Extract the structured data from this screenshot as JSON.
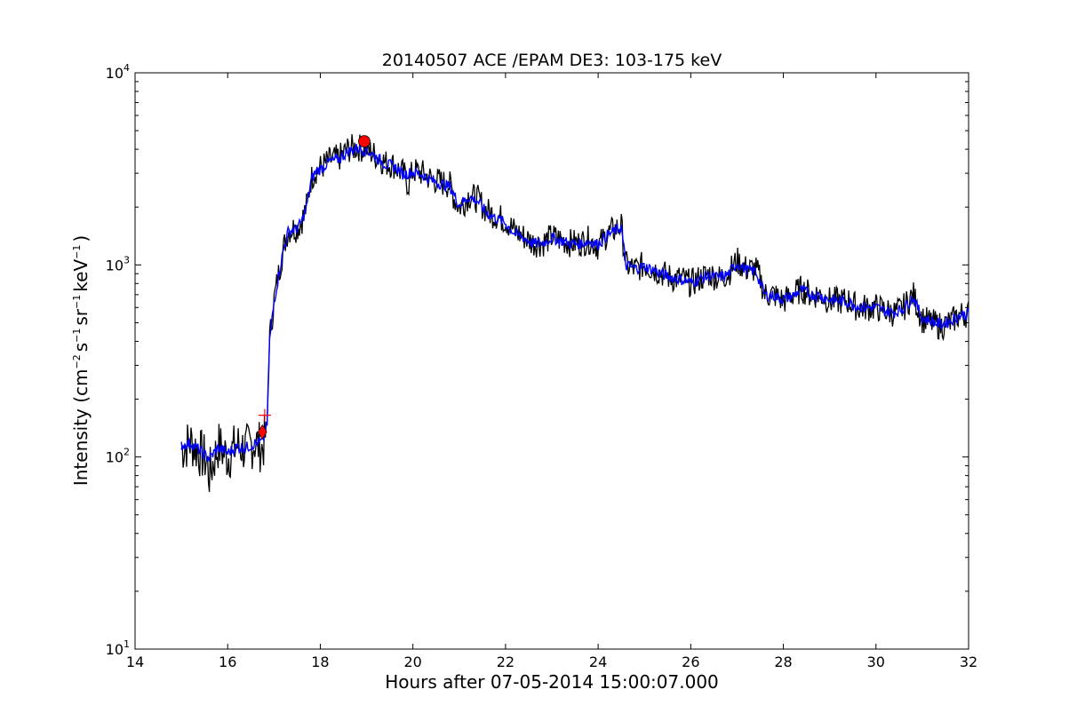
{
  "chart_data": {
    "type": "line",
    "title": "20140507 ACE /EPAM DE3: 103-175 keV",
    "xlabel": "Hours after 07-05-2014 15:00:07.000",
    "ylabel": {
      "prefix": "Intensity (cm",
      "sup1": "−2",
      "mid1": "s",
      "sup2": "−1",
      "mid2": "sr",
      "sup3": "−1",
      "mid3": "keV",
      "sup4": "−1",
      "suffix": ")"
    },
    "xlim": [
      14,
      32
    ],
    "ylim": [
      10,
      10000
    ],
    "yscale": "log",
    "grid": false,
    "x_ticks": [
      "14",
      "16",
      "18",
      "20",
      "22",
      "24",
      "26",
      "28",
      "30",
      "32"
    ],
    "y_ticks": [
      {
        "base": "10",
        "exp": "1"
      },
      {
        "base": "10",
        "exp": "2"
      },
      {
        "base": "10",
        "exp": "3"
      },
      {
        "base": "10",
        "exp": "4"
      }
    ],
    "series": [
      {
        "color": "#000000",
        "kind": "raw",
        "x": [
          15.0,
          15.2,
          15.4,
          15.55,
          15.6,
          15.8,
          16.0,
          16.2,
          16.4,
          16.6,
          16.75,
          16.85,
          16.9,
          17.0,
          17.1,
          17.2,
          17.3,
          17.4,
          17.5,
          17.6,
          17.7,
          17.8,
          17.9,
          18.0,
          18.2,
          18.4,
          18.6,
          18.8,
          19.0,
          19.2,
          19.4,
          19.6,
          19.7,
          19.8,
          19.9,
          20.0,
          20.2,
          20.4,
          20.6,
          20.8,
          20.9,
          21.0,
          21.1,
          21.2,
          21.4,
          21.6,
          21.8,
          22.0,
          22.2,
          22.4,
          22.6,
          22.8,
          23.0,
          23.2,
          23.4,
          23.6,
          23.8,
          24.0,
          24.2,
          24.4,
          24.5,
          24.6,
          24.8,
          25.0,
          25.2,
          25.4,
          25.6,
          25.8,
          26.0,
          26.2,
          26.4,
          26.6,
          26.8,
          27.0,
          27.2,
          27.4,
          27.5,
          27.6,
          27.8,
          28.0,
          28.2,
          28.4,
          28.6,
          28.8,
          29.0,
          29.2,
          29.4,
          29.6,
          29.8,
          30.0,
          30.2,
          30.4,
          30.6,
          30.8,
          31.0,
          31.2,
          31.4,
          31.6,
          31.8,
          32.0
        ],
        "y": [
          110,
          120,
          105,
          95,
          80,
          115,
          100,
          115,
          110,
          120,
          110,
          140,
          400,
          650,
          900,
          1200,
          1500,
          1550,
          1550,
          1700,
          2000,
          2800,
          3100,
          3200,
          3500,
          3600,
          4000,
          4100,
          4000,
          3700,
          3400,
          3300,
          3100,
          3000,
          2600,
          3100,
          3000,
          2800,
          2700,
          2600,
          2200,
          2000,
          2100,
          2300,
          2200,
          1900,
          1800,
          1700,
          1500,
          1400,
          1300,
          1300,
          1400,
          1350,
          1300,
          1300,
          1350,
          1250,
          1450,
          1550,
          1600,
          1000,
          950,
          1000,
          950,
          900,
          850,
          850,
          800,
          850,
          900,
          850,
          900,
          1050,
          950,
          950,
          850,
          700,
          700,
          650,
          700,
          750,
          700,
          700,
          650,
          650,
          650,
          600,
          600,
          600,
          580,
          560,
          600,
          700,
          520,
          500,
          480,
          500,
          550,
          560
        ]
      },
      {
        "color": "#0000ff",
        "kind": "smoothed",
        "x": [
          15.0,
          15.2,
          15.4,
          15.6,
          15.8,
          16.0,
          16.2,
          16.4,
          16.6,
          16.75,
          16.85,
          16.9,
          17.0,
          17.1,
          17.2,
          17.3,
          17.4,
          17.5,
          17.6,
          17.7,
          17.8,
          17.9,
          18.0,
          18.2,
          18.4,
          18.6,
          18.8,
          19.0,
          19.2,
          19.4,
          19.6,
          19.8,
          20.0,
          20.2,
          20.4,
          20.6,
          20.8,
          21.0,
          21.2,
          21.4,
          21.6,
          21.8,
          22.0,
          22.2,
          22.4,
          22.6,
          22.8,
          23.0,
          23.2,
          23.4,
          23.6,
          23.8,
          24.0,
          24.2,
          24.4,
          24.5,
          24.6,
          24.8,
          25.0,
          25.2,
          25.4,
          25.6,
          25.8,
          26.0,
          26.2,
          26.4,
          26.6,
          26.8,
          27.0,
          27.2,
          27.4,
          27.6,
          27.8,
          28.0,
          28.2,
          28.4,
          28.6,
          28.8,
          29.0,
          29.2,
          29.4,
          29.6,
          29.8,
          30.0,
          30.2,
          30.4,
          30.6,
          30.8,
          31.0,
          31.2,
          31.4,
          31.6,
          31.8,
          32.0
        ],
        "y": [
          115,
          118,
          108,
          98,
          112,
          105,
          113,
          112,
          118,
          120,
          145,
          390,
          640,
          880,
          1180,
          1480,
          1520,
          1540,
          1680,
          1980,
          2750,
          3050,
          3150,
          3450,
          3550,
          3900,
          4050,
          3950,
          3650,
          3350,
          3250,
          2950,
          3050,
          2950,
          2750,
          2650,
          2550,
          2050,
          2250,
          2150,
          1850,
          1750,
          1650,
          1450,
          1380,
          1290,
          1300,
          1380,
          1340,
          1290,
          1290,
          1330,
          1280,
          1430,
          1520,
          1580,
          990,
          960,
          980,
          940,
          890,
          860,
          840,
          810,
          840,
          880,
          860,
          890,
          1020,
          940,
          930,
          700,
          690,
          660,
          690,
          740,
          700,
          690,
          660,
          650,
          640,
          610,
          600,
          600,
          575,
          565,
          595,
          680,
          530,
          510,
          490,
          510,
          545,
          560
        ]
      }
    ],
    "markers": [
      {
        "name": "onset",
        "shape": "diamond",
        "color": "#ff0000",
        "x": 16.75,
        "y": 135
      },
      {
        "name": "onset-cross",
        "shape": "plus",
        "color": "#ff0000",
        "x": 16.8,
        "y": 165
      },
      {
        "name": "peak",
        "shape": "circle",
        "color": "#ff0000",
        "x": 18.95,
        "y": 4400
      }
    ]
  }
}
